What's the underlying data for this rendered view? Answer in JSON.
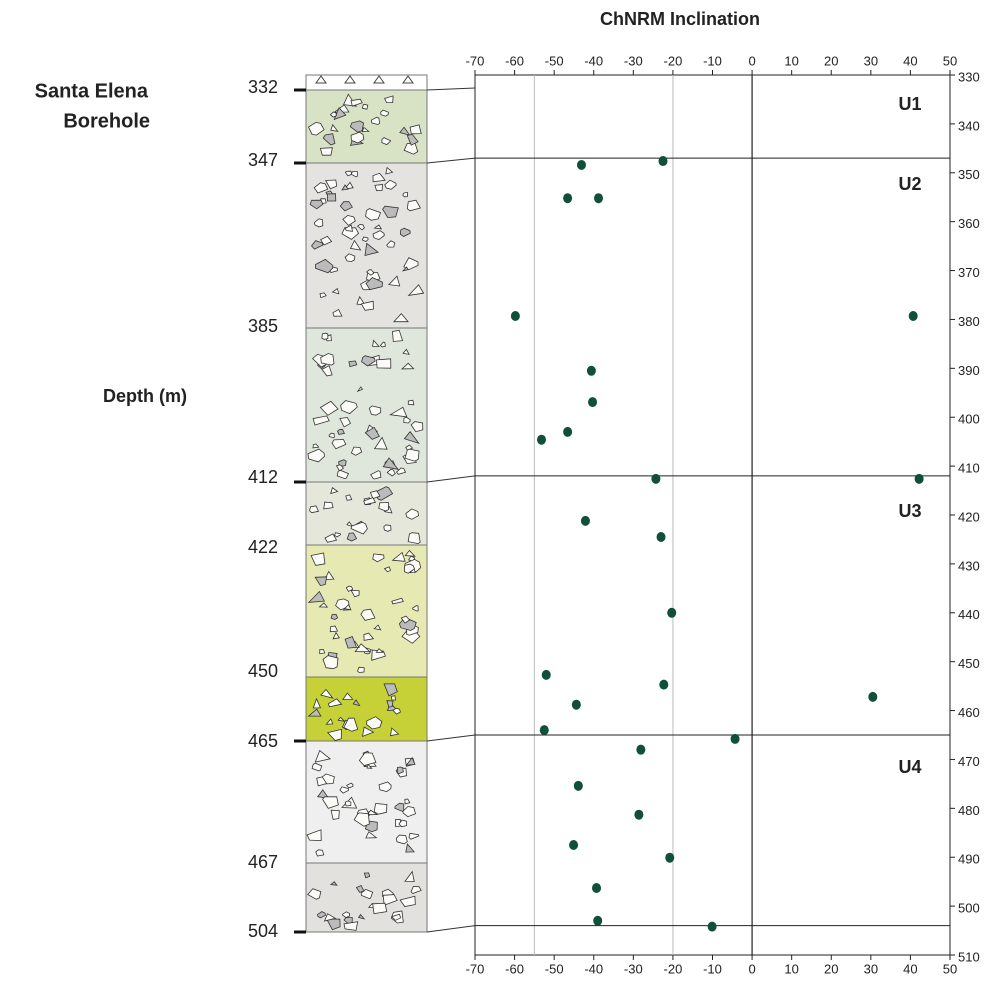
{
  "chart_data": {
    "type": "scatter",
    "title": "ChNRM Inclination",
    "site_title": [
      "Santa Elena",
      "Borehole"
    ],
    "y_label": "Depth (m)",
    "xlim": [
      -70,
      50
    ],
    "xticks": [
      -70,
      -60,
      -50,
      -40,
      -30,
      -20,
      -10,
      0,
      10,
      20,
      30,
      40,
      50
    ],
    "ylim": [
      330,
      510
    ],
    "y_inverted": true,
    "yticks": [
      330,
      340,
      350,
      360,
      370,
      380,
      390,
      400,
      410,
      420,
      430,
      440,
      450,
      460,
      470,
      480,
      490,
      500,
      510
    ],
    "zero_line": 0,
    "reference_lines": [
      -55,
      -20
    ],
    "unit_boundaries": [
      347,
      412,
      465,
      504
    ],
    "units": [
      "U1",
      "U2",
      "U3",
      "U4"
    ],
    "column_depths": [
      332,
      347,
      385,
      412,
      422,
      450,
      465,
      467,
      504
    ],
    "series": [
      {
        "color": "#0f4f3c",
        "x": [
          -43.1,
          -22.5,
          -46.6,
          -38.8,
          -59.8,
          40.7,
          -40.6,
          -40.3,
          -46.6,
          -53.2,
          -24.3,
          42.2,
          -42.1,
          -23.0,
          -20.3,
          -52.0,
          -22.3,
          -44.4,
          30.5,
          -52.5,
          -4.3,
          -28.1,
          -43.9,
          -28.6,
          -45.1,
          -20.8,
          -39.3,
          -39.0,
          -10.1
        ],
        "values": [
          348.4,
          347.6,
          355.2,
          355.2,
          379.3,
          379.3,
          390.5,
          396.9,
          403.0,
          404.6,
          412.6,
          412.6,
          421.2,
          424.5,
          440.0,
          452.7,
          454.7,
          458.8,
          457.2,
          464.0,
          465.8,
          468.0,
          475.4,
          481.3,
          487.5,
          490.1,
          496.3,
          503.0,
          504.2
        ]
      }
    ]
  }
}
